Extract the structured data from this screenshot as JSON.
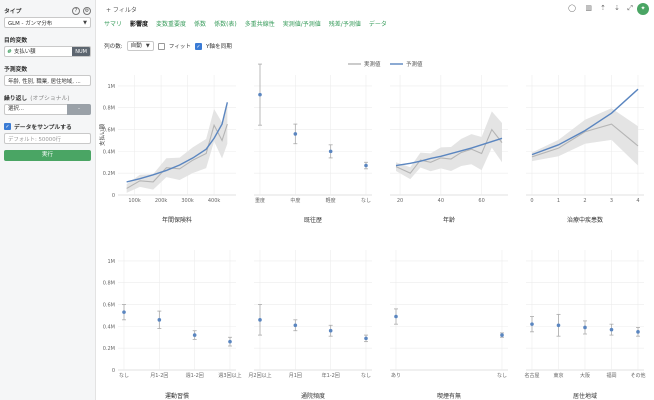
{
  "sidebar": {
    "type_label": "タイプ",
    "type_value": "GLM - ガンマ分布",
    "target_label": "目的変数",
    "target_var": "支払い額",
    "target_badge": "NUM",
    "predictors_label": "予測変数",
    "predictors_value": "年齢, 性別, 職業, 居住地域, ...",
    "repeat_label": "繰り返し",
    "repeat_opt": "(オプショナル)",
    "repeat_value": "選択...",
    "repeat_btn": "-",
    "sample_label": "データをサンプルする",
    "sample_placeholder": "デフォルト: 50000行",
    "run_label": "実行"
  },
  "header": {
    "filter_label": "+ フィルタ",
    "tabs": [
      "サマリ",
      "影響度",
      "変数重要度",
      "係数",
      "係数(表)",
      "多重共線性",
      "実測値/予測値",
      "残差/予測値",
      "データ"
    ],
    "active_tab": "影響度",
    "cols_label": "列の数:",
    "cols_value": "自動",
    "fit_label": "フィット",
    "sync_label": "Y軸を同期"
  },
  "legend": {
    "actual": "実測値",
    "predicted": "予測値"
  },
  "colors": {
    "predicted": "#5b86c0",
    "actual": "#b5b5b5",
    "band": "#e4e4e4",
    "accent": "#4aa564",
    "tab": "#3a9d5d"
  },
  "icons": [
    "help-icon",
    "gear-icon",
    "comment-icon",
    "chart-icon",
    "upload-icon",
    "download-icon",
    "expand-icon",
    "pin-icon"
  ],
  "chart_data": [
    {
      "type": "line",
      "title": "年間保険料",
      "ylabel": "支払い額",
      "ylim": [
        0,
        1100000
      ],
      "yticks": [
        "0",
        "0.2M",
        "0.4M",
        "0.6M",
        "0.8M",
        "1M"
      ],
      "xticks": [
        "100k",
        "200k",
        "300k",
        "400k"
      ],
      "xlim": [
        60000,
        460000
      ],
      "x": [
        70000,
        120000,
        170000,
        220000,
        270000,
        320000,
        370000,
        400000,
        430000,
        450000
      ],
      "series": [
        {
          "name": "予測値",
          "values": [
            120000,
            150000,
            185000,
            225000,
            275000,
            340000,
            420000,
            520000,
            650000,
            850000
          ]
        },
        {
          "name": "実測値",
          "values": [
            60000,
            130000,
            120000,
            250000,
            240000,
            320000,
            380000,
            640000,
            500000,
            650000
          ]
        }
      ]
    },
    {
      "type": "scatter",
      "title": "既往歴",
      "ylim": [
        0,
        1100000
      ],
      "categories": [
        "重度",
        "中度",
        "軽度",
        "なし"
      ],
      "values": [
        920000,
        560000,
        400000,
        270000
      ],
      "err": [
        280000,
        90000,
        60000,
        30000
      ]
    },
    {
      "type": "line",
      "title": "年齢",
      "ylim": [
        0,
        1100000
      ],
      "xticks": [
        "20",
        "40",
        "60"
      ],
      "xlim": [
        18,
        70
      ],
      "x": [
        18,
        25,
        30,
        35,
        40,
        45,
        50,
        55,
        60,
        65,
        70
      ],
      "series": [
        {
          "name": "予測値",
          "values": [
            270000,
            290000,
            310000,
            335000,
            355000,
            380000,
            405000,
            430000,
            460000,
            490000,
            520000
          ]
        },
        {
          "name": "実測値",
          "values": [
            260000,
            200000,
            320000,
            300000,
            340000,
            330000,
            390000,
            420000,
            380000,
            600000,
            480000
          ]
        }
      ]
    },
    {
      "type": "line",
      "title": "治療中疾患数",
      "ylim": [
        0,
        1100000
      ],
      "xticks": [
        "0",
        "1",
        "2",
        "3",
        "4"
      ],
      "xlim": [
        0,
        4
      ],
      "x": [
        0,
        1,
        2,
        3,
        4
      ],
      "series": [
        {
          "name": "予測値",
          "values": [
            370000,
            460000,
            590000,
            750000,
            970000
          ]
        },
        {
          "name": "実測値",
          "values": [
            350000,
            430000,
            580000,
            650000,
            450000
          ]
        }
      ]
    },
    {
      "type": "scatter",
      "title": "運動習慣",
      "ylim": [
        0,
        1100000
      ],
      "categories": [
        "なし",
        "月1-2回",
        "週1-2回",
        "週3回以上"
      ],
      "values": [
        530000,
        460000,
        320000,
        260000
      ],
      "err": [
        70000,
        80000,
        40000,
        40000
      ]
    },
    {
      "type": "scatter",
      "title": "通院頻度",
      "ylim": [
        0,
        1100000
      ],
      "categories": [
        "月2回以上",
        "月1回",
        "年1-2回",
        "なし"
      ],
      "values": [
        460000,
        410000,
        360000,
        290000
      ],
      "err": [
        140000,
        50000,
        50000,
        30000
      ]
    },
    {
      "type": "scatter",
      "title": "喫煙有無",
      "ylim": [
        0,
        1100000
      ],
      "categories": [
        "あり",
        "なし"
      ],
      "values": [
        490000,
        320000
      ],
      "err": [
        70000,
        20000
      ]
    },
    {
      "type": "scatter",
      "title": "居住地域",
      "ylim": [
        0,
        1100000
      ],
      "categories": [
        "名古屋",
        "東京",
        "大阪",
        "福岡",
        "その他"
      ],
      "values": [
        420000,
        410000,
        390000,
        370000,
        350000
      ],
      "err": [
        70000,
        100000,
        60000,
        50000,
        40000
      ]
    }
  ]
}
